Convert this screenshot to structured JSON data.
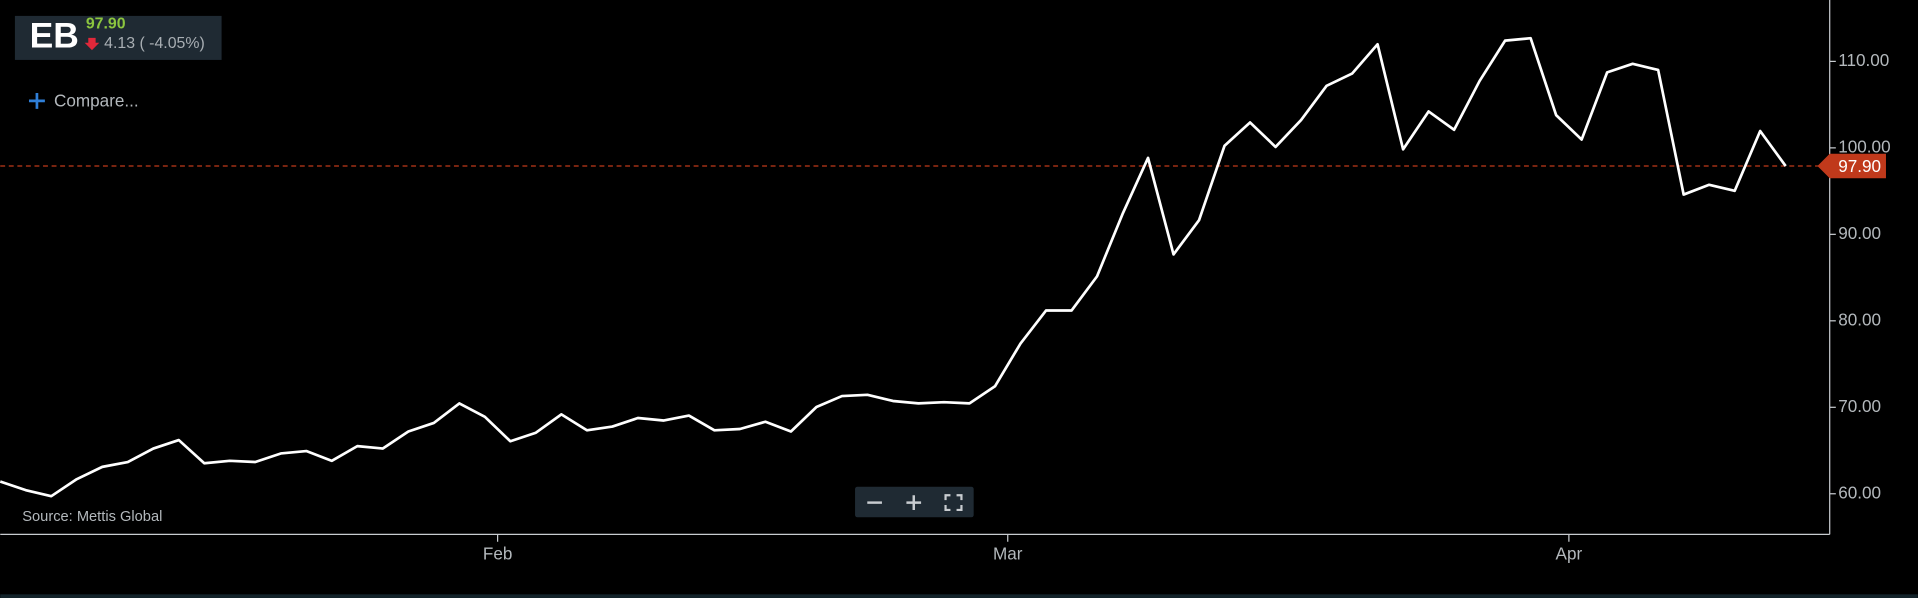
{
  "header": {
    "ticker": "EB",
    "change": "4.13 ( -4.05%)"
  },
  "compare": "Compare...",
  "chart_data": {
    "type": "line",
    "source": "Source: Mettis Global",
    "categories": [
      null,
      null,
      null,
      null,
      null,
      null,
      null,
      null,
      null,
      null,
      null,
      null,
      null,
      null,
      null,
      null,
      null,
      null,
      null,
      null,
      "Feb",
      null,
      null,
      null,
      null,
      null,
      null,
      null,
      null,
      null,
      null,
      null,
      null,
      null,
      null,
      null,
      null,
      null,
      null,
      null,
      "Mar",
      null,
      null,
      null,
      null,
      null,
      null,
      null,
      null,
      null,
      null,
      null,
      null,
      null,
      null,
      null,
      null,
      null,
      null,
      null,
      null,
      null,
      "Apr",
      null,
      null,
      null,
      null,
      null,
      null,
      null,
      null
    ],
    "values": [
      61.41,
      60.42,
      59.72,
      61.69,
      63.11,
      63.67,
      65.23,
      66.21,
      63.53,
      63.81,
      63.67,
      64.66,
      64.94,
      63.81,
      65.51,
      65.23,
      67.2,
      68.19,
      70.45,
      68.9,
      66.07,
      67.06,
      69.18,
      67.34,
      67.77,
      68.76,
      68.47,
      69.04,
      67.34,
      67.49,
      68.33,
      67.2,
      70.03,
      71.3,
      71.44,
      70.73,
      70.45,
      70.59,
      70.45,
      72.43,
      77.37,
      81.19,
      81.19,
      85.14,
      92.34,
      98.84,
      87.68,
      91.64,
      100.25,
      102.94,
      100.11,
      103.22,
      107.18,
      108.59,
      111.98,
      99.83,
      104.21,
      102.09,
      107.74,
      112.4,
      112.68,
      103.79,
      100.96,
      108.73,
      109.72,
      109.01,
      94.6,
      95.73,
      95.03,
      101.95,
      97.9
    ],
    "color": "#ffffff",
    "current_price": {
      "value": 97.9,
      "label": "97.90"
    },
    "ylim": [
      55.3,
      117.1
    ],
    "yticks": [
      {
        "value": 60,
        "label": "60.00"
      },
      {
        "value": 70,
        "label": "70.00"
      },
      {
        "value": 80,
        "label": "80.00"
      },
      {
        "value": 90,
        "label": "90.00"
      },
      {
        "value": 100,
        "label": "100.00"
      },
      {
        "value": 110,
        "label": "110.00"
      }
    ]
  }
}
